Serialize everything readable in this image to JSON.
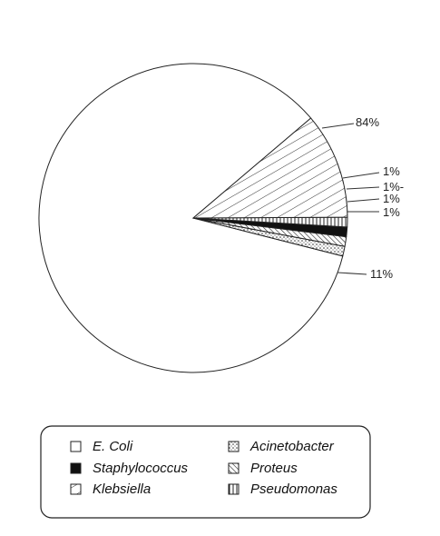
{
  "chart_data": {
    "type": "pie",
    "title": "",
    "slices": [
      {
        "name": "E. Coli",
        "value": 84,
        "label": "84%",
        "pattern": "blank"
      },
      {
        "name": "Acinetobacter",
        "value": 1,
        "label": "1%",
        "pattern": "dots"
      },
      {
        "name": "Proteus",
        "value": 1,
        "label": "1%-",
        "pattern": "diagonal-back"
      },
      {
        "name": "Staphylococcus",
        "value": 1,
        "label": "1%",
        "pattern": "solid"
      },
      {
        "name": "Pseudomonas",
        "value": 1,
        "label": "1%",
        "pattern": "vertical"
      },
      {
        "name": "Klebsiella",
        "value": 11,
        "label": "11%",
        "pattern": "diagonal"
      }
    ],
    "legend": {
      "placement": "bottom",
      "entries": [
        {
          "name": "E. Coli",
          "pattern": "blank"
        },
        {
          "name": "Staphylococcus",
          "pattern": "solid"
        },
        {
          "name": "Klebsiella",
          "pattern": "diagonal"
        },
        {
          "name": "Acinetobacter",
          "pattern": "dots"
        },
        {
          "name": "Proteus",
          "pattern": "diagonal-back"
        },
        {
          "name": "Pseudomonas",
          "pattern": "vertical"
        }
      ]
    }
  }
}
